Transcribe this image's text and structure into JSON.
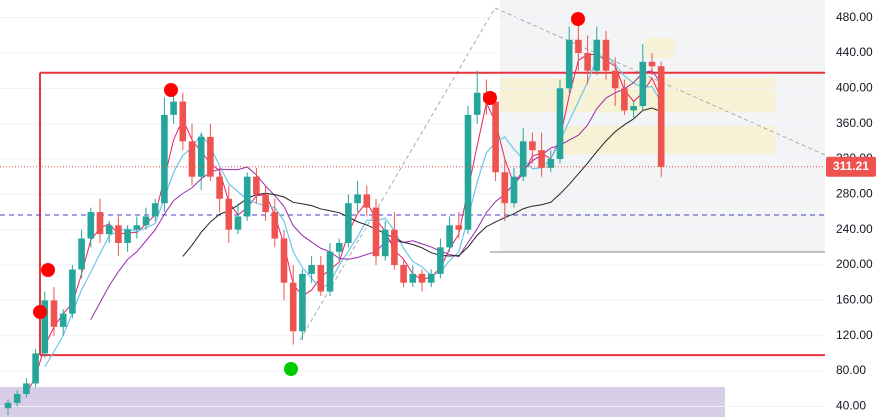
{
  "chart_data": {
    "type": "candlestick",
    "open": [
      38,
      44,
      54,
      66,
      100,
      160,
      130,
      145,
      195,
      230,
      260,
      235,
      245,
      225,
      240,
      245,
      255,
      270,
      370,
      385,
      340,
      300,
      345,
      300,
      275,
      240,
      255,
      300,
      280,
      260,
      230,
      180,
      125,
      190,
      200,
      170,
      215,
      225,
      270,
      280,
      265,
      210,
      240,
      200,
      180,
      190,
      180,
      190,
      220,
      245,
      240,
      370,
      395,
      385,
      305,
      270,
      300,
      340,
      330,
      310,
      320,
      400,
      455,
      440,
      420,
      455,
      420,
      400,
      375,
      380,
      430,
      425
    ],
    "high": [
      48,
      58,
      72,
      105,
      170,
      175,
      150,
      200,
      240,
      265,
      275,
      250,
      255,
      245,
      255,
      265,
      275,
      390,
      395,
      395,
      360,
      350,
      360,
      310,
      290,
      270,
      305,
      310,
      290,
      275,
      240,
      200,
      195,
      210,
      210,
      225,
      230,
      280,
      295,
      290,
      275,
      250,
      260,
      205,
      200,
      195,
      195,
      230,
      255,
      260,
      380,
      420,
      410,
      395,
      320,
      310,
      355,
      350,
      350,
      330,
      410,
      470,
      475,
      460,
      470,
      465,
      435,
      410,
      385,
      450,
      440,
      430
    ],
    "low": [
      30,
      40,
      50,
      62,
      95,
      120,
      120,
      140,
      185,
      220,
      225,
      225,
      210,
      215,
      230,
      240,
      250,
      260,
      360,
      330,
      290,
      285,
      295,
      260,
      225,
      235,
      250,
      270,
      250,
      220,
      160,
      110,
      115,
      180,
      165,
      165,
      205,
      220,
      260,
      255,
      200,
      205,
      195,
      175,
      175,
      170,
      175,
      185,
      215,
      230,
      235,
      360,
      370,
      295,
      250,
      265,
      295,
      315,
      300,
      305,
      315,
      395,
      420,
      405,
      415,
      410,
      380,
      370,
      365,
      375,
      415,
      300
    ],
    "close": [
      44,
      54,
      66,
      100,
      160,
      130,
      145,
      195,
      230,
      260,
      235,
      245,
      225,
      240,
      245,
      255,
      270,
      370,
      385,
      340,
      300,
      345,
      300,
      275,
      240,
      255,
      300,
      280,
      260,
      230,
      180,
      125,
      190,
      200,
      170,
      215,
      225,
      270,
      280,
      265,
      210,
      240,
      200,
      180,
      190,
      180,
      190,
      220,
      245,
      240,
      370,
      395,
      385,
      305,
      270,
      300,
      340,
      330,
      310,
      320,
      400,
      455,
      440,
      420,
      455,
      420,
      400,
      375,
      380,
      430,
      425,
      311.21
    ],
    "up_color": "#26a69a",
    "down_color": "#ef5350",
    "ylim": [
      28,
      500
    ],
    "yticks": [
      {
        "value": 40,
        "label": "40.00"
      },
      {
        "value": 80,
        "label": "80.00"
      },
      {
        "value": 120,
        "label": "120.00"
      },
      {
        "value": 160,
        "label": "160.00"
      },
      {
        "value": 200,
        "label": "200.00"
      },
      {
        "value": 240,
        "label": "240.00"
      },
      {
        "value": 280,
        "label": "280.00"
      },
      {
        "value": 320,
        "label": "320.00"
      },
      {
        "value": 360,
        "label": "360.00"
      },
      {
        "value": 400,
        "label": "400.00"
      },
      {
        "value": 440,
        "label": "440.00"
      },
      {
        "value": 480,
        "label": "480.00"
      }
    ],
    "grid": true,
    "last_price": 311.21,
    "levels": [
      417.6,
      98
    ],
    "dashed_level": 256.6
  }
}
